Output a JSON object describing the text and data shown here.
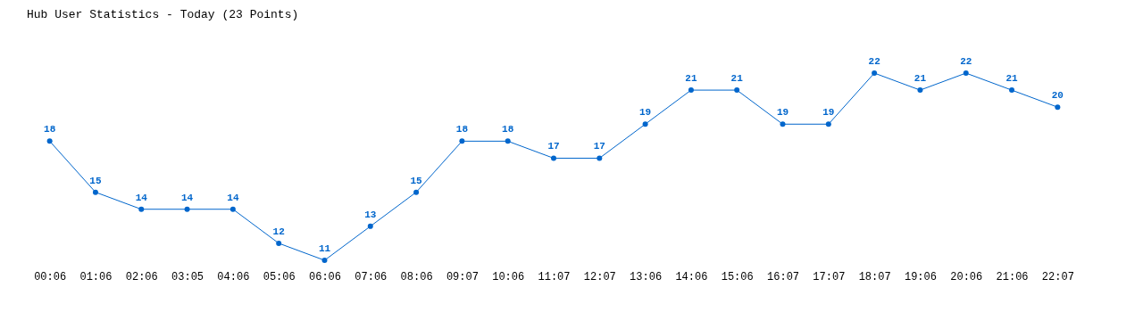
{
  "chart_data": {
    "type": "line",
    "title": "Hub User Statistics - Today (23 Points)",
    "categories": [
      "00:06",
      "01:06",
      "02:06",
      "03:05",
      "04:06",
      "05:06",
      "06:06",
      "07:06",
      "08:06",
      "09:07",
      "10:06",
      "11:07",
      "12:07",
      "13:06",
      "14:06",
      "15:06",
      "16:07",
      "17:07",
      "18:07",
      "19:06",
      "20:06",
      "21:06",
      "22:07"
    ],
    "series": [
      {
        "color": "#0066cc",
        "values": [
          18,
          15,
          14,
          14,
          14,
          12,
          11,
          13,
          15,
          18,
          18,
          17,
          17,
          19,
          21,
          21,
          19,
          19,
          22,
          21,
          22,
          21,
          20
        ]
      }
    ],
    "data_labels": true,
    "marker": "circle",
    "grid": false,
    "tick_labels": "x"
  }
}
